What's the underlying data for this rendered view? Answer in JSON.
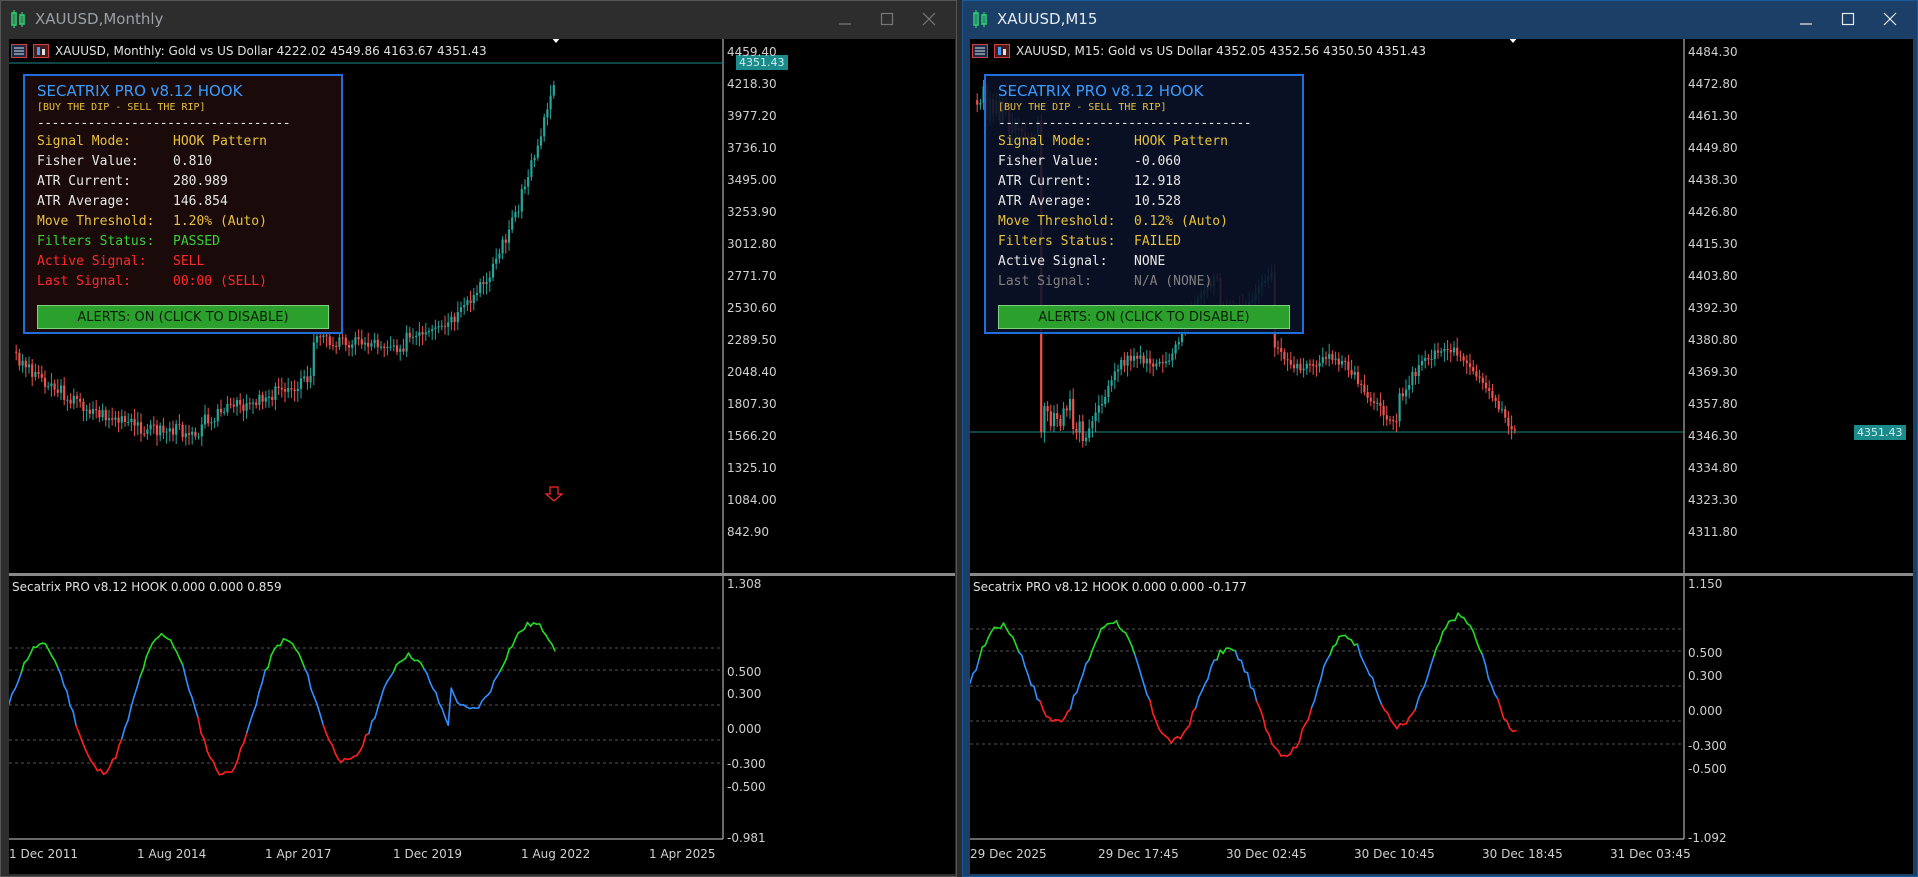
{
  "left": {
    "title": "XAUUSD,Monthly",
    "header": "XAUUSD, Monthly:  Gold vs US Dollar  4222.02 4549.86 4163.67 4351.43",
    "price_tag": "4351.43",
    "y_labels": [
      "4459.40",
      "4218.30",
      "3977.20",
      "3736.10",
      "3495.00",
      "3253.90",
      "3012.80",
      "2771.70",
      "2530.60",
      "2289.50",
      "2048.40",
      "1807.30",
      "1566.20",
      "1325.10",
      "1084.00",
      "842.90"
    ],
    "sub_header": "Secatrix PRO v8.12 HOOK 0.000 0.000 0.859",
    "sub_y_labels": [
      "1.308",
      "0.500",
      "0.300",
      "0.000",
      "-0.300",
      "-0.500",
      "-0.981"
    ],
    "x_labels": [
      "1 Dec 2011",
      "1 Aug 2014",
      "1 Apr 2017",
      "1 Dec 2019",
      "1 Aug 2022",
      "1 Apr 2025"
    ],
    "panel": {
      "title": "SECATRIX PRO v8.12 HOOK",
      "subtitle": "[BUY THE DIP - SELL THE RIP]",
      "dashes": "-----------------------------------",
      "rows": [
        {
          "k": "Signal Mode:",
          "v": "HOOK Pattern",
          "color": "#e8c23a"
        },
        {
          "k": "Fisher Value:",
          "v": "0.810",
          "color": "#e8e8e8"
        },
        {
          "k": "ATR Current:",
          "v": "280.989",
          "color": "#e8e8e8"
        },
        {
          "k": "ATR Average:",
          "v": "146.854",
          "color": "#e8e8e8"
        },
        {
          "k": "Move Threshold:",
          "v": "1.20% (Auto)",
          "color": "#e8c23a"
        },
        {
          "k": "Filters Status:",
          "v": "PASSED",
          "color": "#3ad13a"
        },
        {
          "k": "Active Signal:",
          "v": "SELL",
          "color": "#ff2a2a"
        },
        {
          "k": "Last Signal:",
          "v": "00:00 (SELL)",
          "color": "#ff2a2a"
        }
      ],
      "button": "ALERTS: ON (CLICK TO DISABLE)"
    }
  },
  "right": {
    "title": "XAUUSD,M15",
    "header": "XAUUSD, M15:  Gold vs US Dollar  4352.05 4352.56 4350.50 4351.43",
    "price_tag": "4351.43",
    "y_labels": [
      "4484.30",
      "4472.80",
      "4461.30",
      "4449.80",
      "4438.30",
      "4426.80",
      "4415.30",
      "4403.80",
      "4392.30",
      "4380.80",
      "4369.30",
      "4357.80",
      "4346.30",
      "4334.80",
      "4323.30",
      "4311.80"
    ],
    "sub_header": "Secatrix PRO v8.12 HOOK 0.000 0.000 -0.177",
    "sub_y_labels": [
      "1.150",
      "0.500",
      "0.300",
      "0.000",
      "-0.300",
      "-0.500",
      "-1.092"
    ],
    "x_labels": [
      "29 Dec 2025",
      "29 Dec 17:45",
      "30 Dec 02:45",
      "30 Dec 10:45",
      "30 Dec 18:45",
      "31 Dec 03:45"
    ],
    "panel": {
      "title": "SECATRIX PRO v8.12 HOOK",
      "subtitle": "[BUY THE DIP - SELL THE RIP]",
      "dashes": "-----------------------------------",
      "rows": [
        {
          "k": "Signal Mode:",
          "v": "HOOK Pattern",
          "color": "#e8c23a"
        },
        {
          "k": "Fisher Value:",
          "v": "-0.060",
          "color": "#e8e8e8"
        },
        {
          "k": "ATR Current:",
          "v": "12.918",
          "color": "#e8e8e8"
        },
        {
          "k": "ATR Average:",
          "v": "10.528",
          "color": "#e8e8e8"
        },
        {
          "k": "Move Threshold:",
          "v": "0.12% (Auto)",
          "color": "#e8c23a"
        },
        {
          "k": "Filters Status:",
          "v": "FAILED",
          "color": "#e8c23a"
        },
        {
          "k": "Active Signal:",
          "v": "NONE",
          "color": "#e8e8e8"
        },
        {
          "k": "Last Signal:",
          "v": "N/A (NONE)",
          "color": "#808080"
        }
      ],
      "button": "ALERTS: ON (CLICK TO DISABLE)"
    }
  },
  "colors": {
    "bull_candle": "#26a69a",
    "bear_candle": "#ef5350",
    "osc_up": "#22dd22",
    "osc_mid": "#2f8fff",
    "osc_down": "#ff2020"
  },
  "icons": [
    "chart-window-icon",
    "minimize-icon",
    "maximize-icon",
    "close-icon"
  ]
}
